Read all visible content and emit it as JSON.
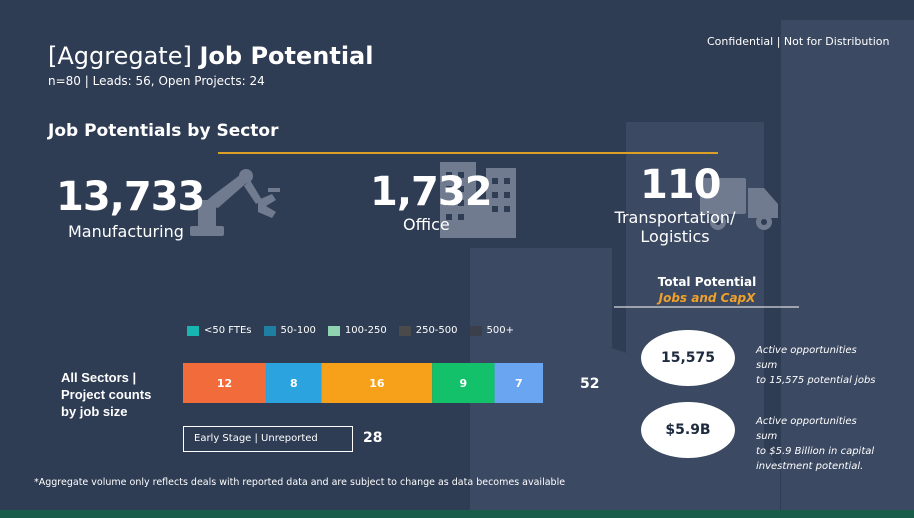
{
  "header": {
    "title_light": "[Aggregate]",
    "title_bold": "Job Potential",
    "subtitle": "n=80 | Leads: 56, Open Projects: 24",
    "confidential": "Confidential | Not for Distribution"
  },
  "section_title": "Job Potentials by Sector",
  "sectors": [
    {
      "value": "13,733",
      "label": "Manufacturing",
      "icon": "robot-arm-icon"
    },
    {
      "value": "1,732",
      "label": "Office",
      "icon": "office-building-icon"
    },
    {
      "value": "110",
      "label_line1": "Transportation/",
      "label_line2": "Logistics",
      "icon": "truck-icon"
    }
  ],
  "total_potential": {
    "title": "Total Potential",
    "subtitle": "Jobs and CapX",
    "items": [
      {
        "value": "15,575",
        "note_line1": "Active opportunities sum",
        "note_line2": "to 15,575 potential jobs"
      },
      {
        "value": "$5.9B",
        "note_line1": "Active opportunities sum",
        "note_line2": "to $5.9 Billion in capital",
        "note_line3": "investment potential."
      }
    ]
  },
  "chart_data": {
    "type": "bar",
    "orientation": "horizontal",
    "stacked": true,
    "categories": [
      "All Sectors | Project counts by job size"
    ],
    "category_label_lines": [
      "All Sectors |",
      "Project counts",
      "by job size"
    ],
    "series": [
      {
        "name": "<50 FTEs",
        "values": [
          12
        ],
        "color": "#f26b3a"
      },
      {
        "name": "50-100",
        "values": [
          8
        ],
        "color": "#2aa3de"
      },
      {
        "name": "100-250",
        "values": [
          16
        ],
        "color": "#f7a11a"
      },
      {
        "name": "250-500",
        "values": [
          9
        ],
        "color": "#13c16a"
      },
      {
        "name": "500+",
        "values": [
          7
        ],
        "color": "#69a5f0"
      }
    ],
    "legend_colors": [
      "#17b6b0",
      "#1f7fa3",
      "#8fd3b0",
      "#4a4a4a",
      "#3a3f4a"
    ],
    "total": "52",
    "early_stage": {
      "label": "Early Stage | Unreported",
      "value": "28"
    },
    "legend": "top"
  },
  "footnote": "*Aggregate volume only reflects deals with reported data and are subject to change as data becomes available"
}
